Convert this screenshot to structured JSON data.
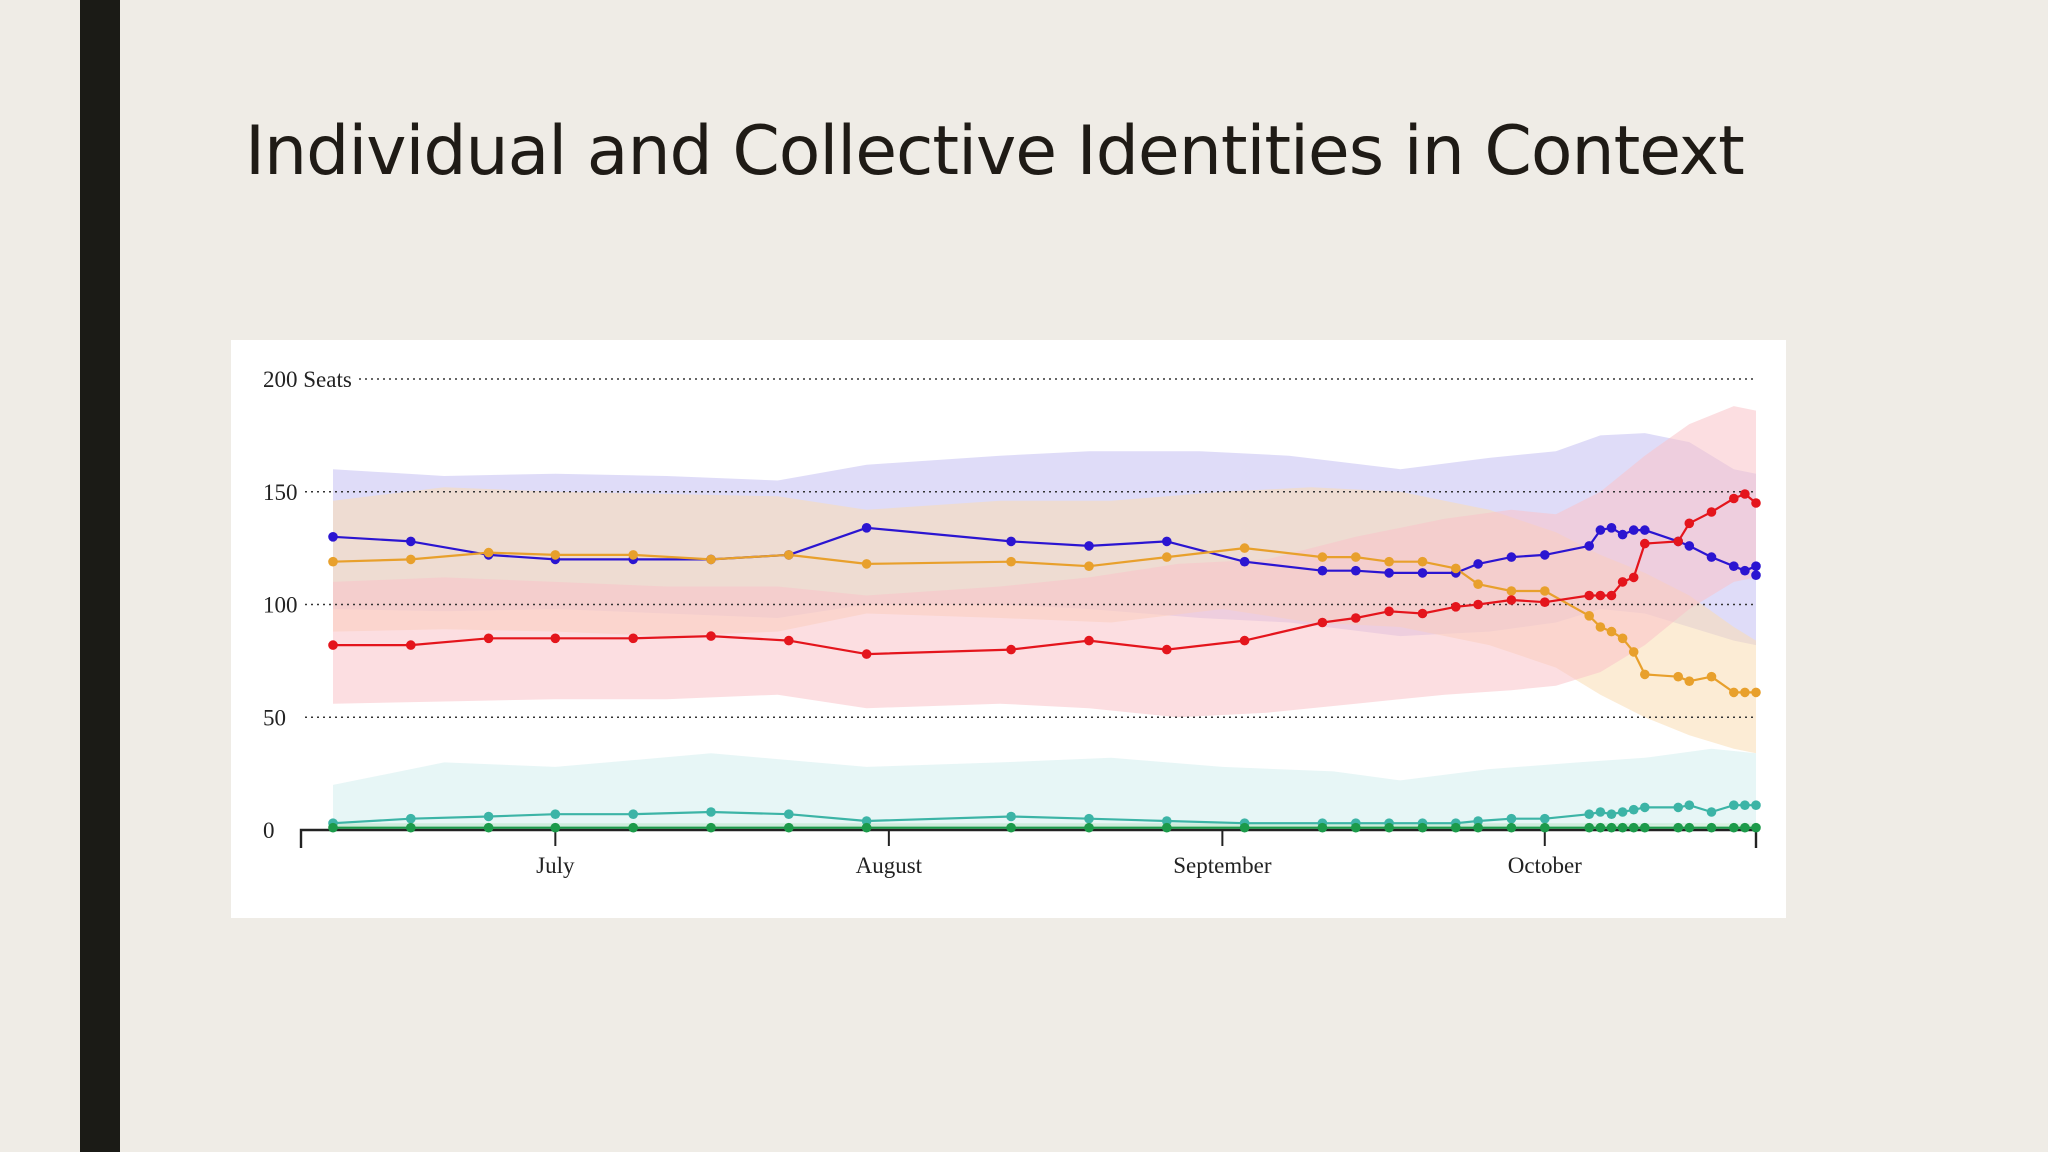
{
  "slide": {
    "title": "Individual and Collective Identities in Context"
  },
  "chart_data": {
    "type": "line",
    "title": "",
    "xlabel": "",
    "ylabel": "",
    "y_unit_label": "Seats",
    "x_range": [
      0,
      128
    ],
    "ylim": [
      0,
      200
    ],
    "y_ticks": [
      0,
      50,
      100,
      150,
      200
    ],
    "y_tick_labels": [
      "0",
      "50",
      "100",
      "150",
      "200 Seats"
    ],
    "x_ticks": [
      {
        "label": "July",
        "x": 20
      },
      {
        "label": "August",
        "x": 50
      },
      {
        "label": "September",
        "x": 80
      },
      {
        "label": "October",
        "x": 109
      }
    ],
    "grid": "dotted horizontal",
    "series": [
      {
        "color": "#2b15d1",
        "band_color": "#c4bff2",
        "points": [
          [
            0,
            130
          ],
          [
            7,
            128
          ],
          [
            14,
            122
          ],
          [
            20,
            120
          ],
          [
            27,
            120
          ],
          [
            34,
            120
          ],
          [
            41,
            122
          ],
          [
            48,
            134
          ],
          [
            61,
            128
          ],
          [
            68,
            126
          ],
          [
            75,
            128
          ],
          [
            82,
            119
          ],
          [
            89,
            115
          ],
          [
            92,
            115
          ],
          [
            95,
            114
          ],
          [
            98,
            114
          ],
          [
            101,
            114
          ],
          [
            103,
            118
          ],
          [
            106,
            121
          ],
          [
            109,
            122
          ],
          [
            113,
            126
          ],
          [
            114,
            133
          ],
          [
            115,
            134
          ],
          [
            116,
            131
          ],
          [
            117,
            133
          ],
          [
            118,
            133
          ],
          [
            121,
            128
          ],
          [
            122,
            126
          ],
          [
            124,
            121
          ],
          [
            126,
            117
          ],
          [
            127,
            115
          ],
          [
            128,
            117
          ],
          [
            128,
            113
          ]
        ],
        "band": [
          [
            0,
            160,
            98
          ],
          [
            10,
            157,
            97
          ],
          [
            20,
            158,
            98
          ],
          [
            30,
            157,
            96
          ],
          [
            40,
            155,
            94
          ],
          [
            48,
            162,
            100
          ],
          [
            60,
            166,
            100
          ],
          [
            68,
            168,
            98
          ],
          [
            78,
            168,
            94
          ],
          [
            86,
            166,
            92
          ],
          [
            96,
            160,
            86
          ],
          [
            104,
            165,
            88
          ],
          [
            110,
            168,
            92
          ],
          [
            114,
            175,
            98
          ],
          [
            118,
            176,
            96
          ],
          [
            122,
            172,
            90
          ],
          [
            126,
            160,
            84
          ],
          [
            128,
            158,
            82
          ]
        ]
      },
      {
        "color": "#e8a02c",
        "band_color": "#f9dcb2",
        "points": [
          [
            0,
            119
          ],
          [
            7,
            120
          ],
          [
            14,
            123
          ],
          [
            20,
            122
          ],
          [
            27,
            122
          ],
          [
            34,
            120
          ],
          [
            41,
            122
          ],
          [
            48,
            118
          ],
          [
            61,
            119
          ],
          [
            68,
            117
          ],
          [
            75,
            121
          ],
          [
            82,
            125
          ],
          [
            89,
            121
          ],
          [
            92,
            121
          ],
          [
            95,
            119
          ],
          [
            98,
            119
          ],
          [
            101,
            116
          ],
          [
            103,
            109
          ],
          [
            106,
            106
          ],
          [
            109,
            106
          ],
          [
            113,
            95
          ],
          [
            114,
            90
          ],
          [
            115,
            88
          ],
          [
            116,
            85
          ],
          [
            117,
            79
          ],
          [
            118,
            69
          ],
          [
            121,
            68
          ],
          [
            122,
            66
          ],
          [
            124,
            68
          ],
          [
            126,
            61
          ],
          [
            127,
            61
          ],
          [
            128,
            61
          ]
        ],
        "band": [
          [
            0,
            146,
            88
          ],
          [
            10,
            152,
            89
          ],
          [
            20,
            150,
            88
          ],
          [
            30,
            149,
            86
          ],
          [
            40,
            148,
            88
          ],
          [
            48,
            142,
            96
          ],
          [
            60,
            146,
            94
          ],
          [
            70,
            146,
            92
          ],
          [
            80,
            150,
            98
          ],
          [
            88,
            152,
            92
          ],
          [
            96,
            150,
            90
          ],
          [
            104,
            142,
            82
          ],
          [
            110,
            132,
            72
          ],
          [
            114,
            122,
            60
          ],
          [
            118,
            114,
            50
          ],
          [
            122,
            104,
            42
          ],
          [
            126,
            90,
            36
          ],
          [
            128,
            84,
            34
          ]
        ]
      },
      {
        "color": "#e4151c",
        "band_color": "#f9c3c8",
        "points": [
          [
            0,
            82
          ],
          [
            7,
            82
          ],
          [
            14,
            85
          ],
          [
            20,
            85
          ],
          [
            27,
            85
          ],
          [
            34,
            86
          ],
          [
            41,
            84
          ],
          [
            48,
            78
          ],
          [
            61,
            80
          ],
          [
            68,
            84
          ],
          [
            75,
            80
          ],
          [
            82,
            84
          ],
          [
            89,
            92
          ],
          [
            92,
            94
          ],
          [
            95,
            97
          ],
          [
            98,
            96
          ],
          [
            101,
            99
          ],
          [
            103,
            100
          ],
          [
            106,
            102
          ],
          [
            109,
            101
          ],
          [
            113,
            104
          ],
          [
            114,
            104
          ],
          [
            115,
            104
          ],
          [
            116,
            110
          ],
          [
            117,
            112
          ],
          [
            118,
            127
          ],
          [
            121,
            128
          ],
          [
            122,
            136
          ],
          [
            124,
            141
          ],
          [
            126,
            147
          ],
          [
            127,
            149
          ],
          [
            128,
            145
          ]
        ],
        "band": [
          [
            0,
            110,
            56
          ],
          [
            10,
            112,
            57
          ],
          [
            20,
            110,
            58
          ],
          [
            30,
            108,
            58
          ],
          [
            40,
            108,
            60
          ],
          [
            48,
            104,
            54
          ],
          [
            60,
            108,
            56
          ],
          [
            68,
            112,
            54
          ],
          [
            76,
            118,
            50
          ],
          [
            84,
            120,
            52
          ],
          [
            92,
            130,
            56
          ],
          [
            100,
            138,
            60
          ],
          [
            106,
            142,
            62
          ],
          [
            110,
            140,
            64
          ],
          [
            114,
            150,
            70
          ],
          [
            118,
            166,
            82
          ],
          [
            122,
            180,
            98
          ],
          [
            126,
            188,
            110
          ],
          [
            128,
            186,
            112
          ]
        ]
      },
      {
        "color": "#3cb4a6",
        "band_color": "#d4efee",
        "points": [
          [
            0,
            3
          ],
          [
            7,
            5
          ],
          [
            14,
            6
          ],
          [
            20,
            7
          ],
          [
            27,
            7
          ],
          [
            34,
            8
          ],
          [
            41,
            7
          ],
          [
            48,
            4
          ],
          [
            61,
            6
          ],
          [
            68,
            5
          ],
          [
            75,
            4
          ],
          [
            82,
            3
          ],
          [
            89,
            3
          ],
          [
            92,
            3
          ],
          [
            95,
            3
          ],
          [
            98,
            3
          ],
          [
            101,
            3
          ],
          [
            103,
            4
          ],
          [
            106,
            5
          ],
          [
            109,
            5
          ],
          [
            113,
            7
          ],
          [
            114,
            8
          ],
          [
            115,
            7
          ],
          [
            116,
            8
          ],
          [
            117,
            9
          ],
          [
            118,
            10
          ],
          [
            121,
            10
          ],
          [
            122,
            11
          ],
          [
            124,
            8
          ],
          [
            126,
            11
          ],
          [
            127,
            11
          ],
          [
            128,
            11
          ]
        ],
        "band": [
          [
            0,
            20,
            0
          ],
          [
            10,
            30,
            0
          ],
          [
            20,
            28,
            0
          ],
          [
            34,
            34,
            1
          ],
          [
            48,
            28,
            0
          ],
          [
            60,
            30,
            0
          ],
          [
            70,
            32,
            0
          ],
          [
            80,
            28,
            0
          ],
          [
            90,
            26,
            0
          ],
          [
            96,
            22,
            0
          ],
          [
            104,
            27,
            0
          ],
          [
            112,
            30,
            1
          ],
          [
            118,
            32,
            2
          ],
          [
            124,
            36,
            3
          ],
          [
            128,
            34,
            3
          ]
        ]
      },
      {
        "color": "#1c9a4a",
        "band_color": "#b9e3c7",
        "points": [
          [
            0,
            1
          ],
          [
            7,
            1
          ],
          [
            14,
            1
          ],
          [
            20,
            1
          ],
          [
            27,
            1
          ],
          [
            34,
            1
          ],
          [
            41,
            1
          ],
          [
            48,
            1
          ],
          [
            61,
            1
          ],
          [
            68,
            1
          ],
          [
            75,
            1
          ],
          [
            82,
            1
          ],
          [
            89,
            1
          ],
          [
            92,
            1
          ],
          [
            95,
            1
          ],
          [
            98,
            1
          ],
          [
            101,
            1
          ],
          [
            103,
            1
          ],
          [
            106,
            1
          ],
          [
            109,
            1
          ],
          [
            113,
            1
          ],
          [
            114,
            1
          ],
          [
            115,
            1
          ],
          [
            116,
            1
          ],
          [
            117,
            1
          ],
          [
            118,
            1
          ],
          [
            121,
            1
          ],
          [
            122,
            1
          ],
          [
            124,
            1
          ],
          [
            126,
            1
          ],
          [
            127,
            1
          ],
          [
            128,
            1
          ]
        ],
        "band": [
          [
            0,
            3,
            0
          ],
          [
            128,
            3,
            0
          ]
        ]
      }
    ]
  }
}
